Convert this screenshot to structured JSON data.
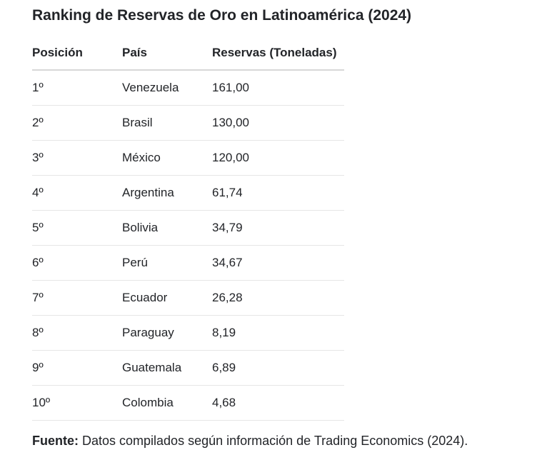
{
  "title": "Ranking de Reservas de Oro en Latinoamérica (2024)",
  "table": {
    "headers": [
      "Posición",
      "País",
      "Reservas (Toneladas)"
    ],
    "rows": [
      [
        "1º",
        "Venezuela",
        "161,00"
      ],
      [
        "2º",
        "Brasil",
        "130,00"
      ],
      [
        "3º",
        "México",
        "120,00"
      ],
      [
        "4º",
        "Argentina",
        "61,74"
      ],
      [
        "5º",
        "Bolivia",
        "34,79"
      ],
      [
        "6º",
        "Perú",
        "34,67"
      ],
      [
        "7º",
        "Ecuador",
        "26,28"
      ],
      [
        "8º",
        "Paraguay",
        "8,19"
      ],
      [
        "9º",
        "Guatemala",
        "6,89"
      ],
      [
        "10º",
        "Colombia",
        "4,68"
      ]
    ]
  },
  "footer": {
    "label": "Fuente:",
    "text": " Datos compilados según información de Trading Economics (2024)."
  }
}
